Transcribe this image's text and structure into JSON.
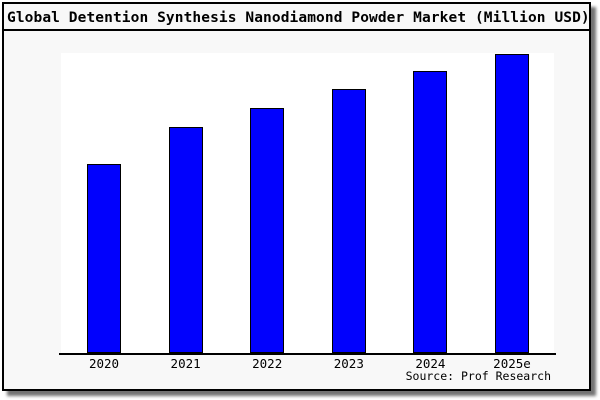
{
  "title": "Global Detention Synthesis Nanodiamond Powder Market (Million USD)",
  "source": "Source: Prof Research",
  "colors": {
    "bar_fill": "#0101fd",
    "bar_border": "#000000",
    "panel_bg": "#f8f8f8",
    "plot_bg": "#ffffff",
    "axis": "#000000",
    "text": "#000000"
  },
  "chart_data": {
    "type": "bar",
    "title": "Global Detention Synthesis Nanodiamond Powder Market (Million USD)",
    "categories": [
      "2020",
      "2021",
      "2022",
      "2023",
      "2024",
      "2025e"
    ],
    "values": [
      189,
      226,
      245,
      264,
      282,
      299
    ],
    "values_note": "relative magnitudes measured as bar pixel heights; y-axis has no ticks or labels in the image",
    "xlabel": "",
    "ylabel": "",
    "ylim": [
      0,
      300
    ],
    "grid": false,
    "legend": false,
    "annotations": [
      "Source: Prof Research"
    ]
  }
}
